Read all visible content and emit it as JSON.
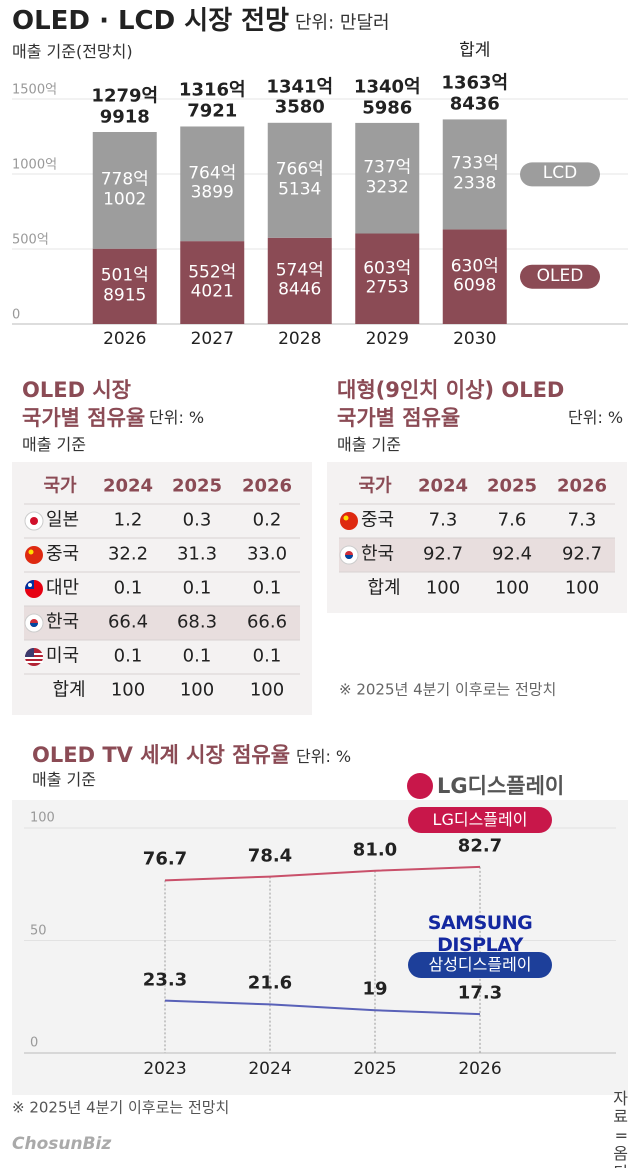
{
  "header": {
    "title": "OLED · LCD 시장 전망",
    "unit": "단위: 만달러"
  },
  "chart_data": [
    {
      "type": "stacked-bar",
      "subtitle": "매출 기준(전망치)",
      "categories": [
        "2026",
        "2027",
        "2028",
        "2029",
        "2030"
      ],
      "series": [
        {
          "name": "OLED",
          "color": "#8b4b55",
          "values": [
            501.8915,
            552.4021,
            574.8446,
            603.2753,
            630.6098
          ],
          "value_labels": [
            "501억\n8915",
            "552억\n4021",
            "574억\n8446",
            "603억\n2753",
            "630억\n6098"
          ]
        },
        {
          "name": "LCD",
          "color": "#9d9d9d",
          "values": [
            778.1002,
            764.3899,
            766.5134,
            737.3232,
            733.2338
          ],
          "value_labels": [
            "778억\n1002",
            "764억\n3899",
            "766억\n5134",
            "737억\n3232",
            "733억\n2338"
          ]
        }
      ],
      "totals": {
        "label": "합계",
        "values": [
          1279.9918,
          1316.7921,
          1341.358,
          1340.5986,
          1363.8436
        ],
        "value_labels": [
          "1279억\n9918",
          "1316억\n7921",
          "1341억\n3580",
          "1340억\n5986",
          "1363억\n8436"
        ]
      },
      "ylim": [
        0,
        1500
      ],
      "yticks": [
        0,
        {
          "value": 500,
          "label": "500억"
        },
        {
          "value": 1000,
          "label": "1000억"
        },
        {
          "value": 1500,
          "label": "1500억"
        }
      ],
      "grid": true
    },
    {
      "type": "table",
      "title": "OLED 시장\n국가별 점유율",
      "unit": "단위: %",
      "subtitle": "매출 기준",
      "columns": [
        "국가",
        "2024",
        "2025",
        "2026"
      ],
      "rows": [
        [
          "일본",
          "1.2",
          "0.3",
          "0.2"
        ],
        [
          "중국",
          "32.2",
          "31.3",
          "33.0"
        ],
        [
          "대만",
          "0.1",
          "0.1",
          "0.1"
        ],
        [
          "한국",
          "66.4",
          "68.3",
          "66.6"
        ],
        [
          "미국",
          "0.1",
          "0.1",
          "0.1"
        ],
        [
          "합계",
          "100",
          "100",
          "100"
        ]
      ],
      "highlight_row": 3
    },
    {
      "type": "table",
      "title": "대형(9인치 이상) OLED\n국가별 점유율",
      "unit": "단위: %",
      "subtitle": "매출 기준",
      "columns": [
        "국가",
        "2024",
        "2025",
        "2026"
      ],
      "rows": [
        [
          "중국",
          "7.3",
          "7.6",
          "7.3"
        ],
        [
          "한국",
          "92.7",
          "92.4",
          "92.7"
        ],
        [
          "합계",
          "100",
          "100",
          "100"
        ]
      ],
      "highlight_row": 1,
      "note": "※ 2025년 4분기 이후로는 전망치"
    },
    {
      "type": "line",
      "title": "OLED TV 세계 시장 점유율",
      "unit": "단위: %",
      "subtitle": "매출 기준",
      "categories": [
        "2023",
        "2024",
        "2025",
        "2026"
      ],
      "series": [
        {
          "name": "LG디스플레이",
          "logo": "LG디스플레이",
          "color": "#c9506a",
          "pill_color": "#c8174a",
          "values": [
            76.7,
            78.4,
            81.0,
            82.7
          ],
          "value_labels": [
            "76.7",
            "78.4",
            "81.0",
            "82.7"
          ]
        },
        {
          "name": "삼성디스플레이",
          "logo": "SAMSUNG DISPLAY",
          "color": "#5961b8",
          "pill_color": "#1d3f9a",
          "values": [
            23.3,
            21.6,
            19.0,
            17.3
          ]
        }
      ],
      "ylim": [
        0,
        100
      ],
      "yticks": [
        0,
        50,
        100
      ],
      "grid": true,
      "note": "※ 2025년 4분기 이후로는 전망치"
    }
  ],
  "footer": {
    "logo": "ChosunBiz",
    "source": "자료=옴디아"
  }
}
